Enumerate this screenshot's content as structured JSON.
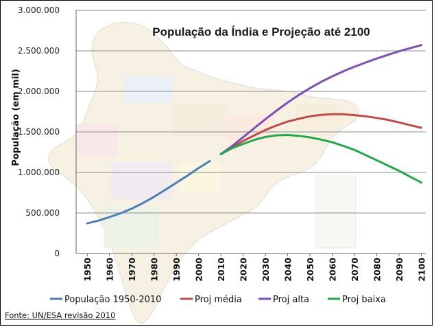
{
  "chart_data": {
    "type": "line",
    "title": "População da Índia e Projeção até 2100",
    "ylabel": "População (em mil)",
    "xlabel": "",
    "ylim": [
      0,
      3000000
    ],
    "yticks": [
      0,
      500000,
      1000000,
      1500000,
      2000000,
      2500000,
      3000000
    ],
    "ytick_labels": [
      "0",
      "500.000",
      "1.000.000",
      "1.500.000",
      "2.000.000",
      "2.500.000",
      "3.000.000"
    ],
    "xlim": [
      1945,
      2102
    ],
    "xticks": [
      1950,
      1960,
      1970,
      1980,
      1990,
      2000,
      2010,
      2020,
      2030,
      2040,
      2050,
      2060,
      2070,
      2080,
      2090,
      2100
    ],
    "grid": true,
    "legend_position": "bottom",
    "background": "map of India (faded)",
    "series": [
      {
        "name": "População 1950-2010",
        "color": "#4a7ebb",
        "x": [
          1950,
          1955,
          1960,
          1965,
          1970,
          1975,
          1980,
          1985,
          1990,
          1995,
          2000,
          2005
        ],
        "y": [
          372000,
          405000,
          449000,
          497000,
          554000,
          622000,
          700000,
          784000,
          873000,
          960000,
          1054000,
          1140000
        ]
      },
      {
        "name": "Proj média",
        "color": "#be4b48",
        "x": [
          2010,
          2015,
          2020,
          2025,
          2030,
          2035,
          2040,
          2045,
          2050,
          2055,
          2060,
          2065,
          2070,
          2075,
          2080,
          2085,
          2090,
          2095,
          2100
        ],
        "y": [
          1225000,
          1310000,
          1387000,
          1458000,
          1523000,
          1580000,
          1627000,
          1662000,
          1692000,
          1710000,
          1718000,
          1718000,
          1707000,
          1692000,
          1672000,
          1648000,
          1617000,
          1583000,
          1551000
        ]
      },
      {
        "name": "Proj alta",
        "color": "#7d4fb5",
        "x": [
          2010,
          2015,
          2020,
          2025,
          2030,
          2035,
          2040,
          2045,
          2050,
          2055,
          2060,
          2065,
          2070,
          2075,
          2080,
          2085,
          2090,
          2095,
          2100
        ],
        "y": [
          1225000,
          1325000,
          1435000,
          1547000,
          1657000,
          1763000,
          1863000,
          1955000,
          2040000,
          2117000,
          2186000,
          2248000,
          2304000,
          2356000,
          2405000,
          2451000,
          2494000,
          2533000,
          2570000
        ]
      },
      {
        "name": "Proj baixa",
        "color": "#22a84a",
        "x": [
          2010,
          2015,
          2020,
          2025,
          2030,
          2035,
          2040,
          2045,
          2050,
          2055,
          2060,
          2065,
          2070,
          2075,
          2080,
          2085,
          2090,
          2095,
          2100
        ],
        "y": [
          1225000,
          1298000,
          1352000,
          1402000,
          1437000,
          1458000,
          1462000,
          1452000,
          1432000,
          1405000,
          1372000,
          1327000,
          1277000,
          1214000,
          1150000,
          1085000,
          1020000,
          947000,
          875000
        ]
      }
    ],
    "source": "Fonte: UN/ESA revisão 2010"
  }
}
